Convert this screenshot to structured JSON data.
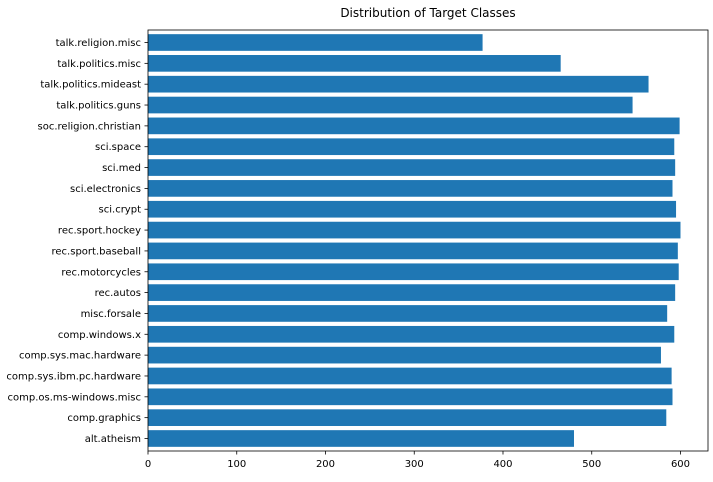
{
  "chart_data": {
    "type": "bar",
    "orientation": "horizontal",
    "title": "Distribution of Target Classes",
    "xlabel": "",
    "ylabel": "",
    "xlim": [
      0,
      631
    ],
    "xticks": [
      0,
      100,
      200,
      300,
      400,
      500,
      600
    ],
    "grid": false,
    "bar_color": "#1f77b4",
    "categories": [
      "alt.atheism",
      "comp.graphics",
      "comp.os.ms-windows.misc",
      "comp.sys.ibm.pc.hardware",
      "comp.sys.mac.hardware",
      "comp.windows.x",
      "misc.forsale",
      "rec.autos",
      "rec.motorcycles",
      "rec.sport.baseball",
      "rec.sport.hockey",
      "sci.crypt",
      "sci.electronics",
      "sci.med",
      "sci.space",
      "soc.religion.christian",
      "talk.politics.guns",
      "talk.politics.mideast",
      "talk.politics.misc",
      "talk.religion.misc"
    ],
    "values": [
      480,
      584,
      591,
      590,
      578,
      593,
      585,
      594,
      598,
      597,
      600,
      595,
      591,
      594,
      593,
      599,
      546,
      564,
      465,
      377
    ]
  }
}
